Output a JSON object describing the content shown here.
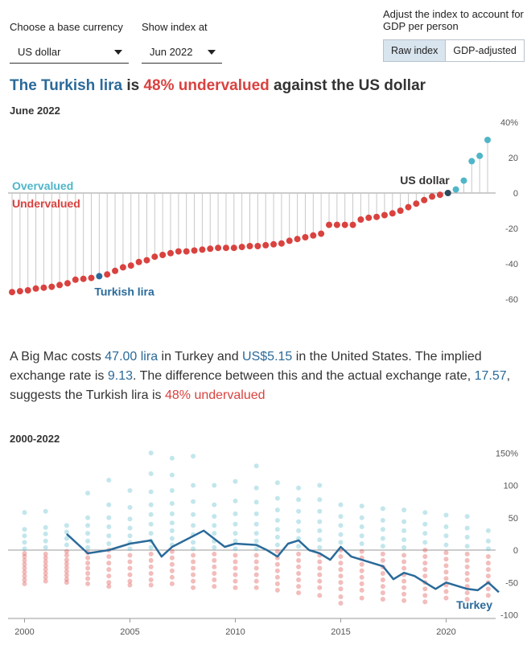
{
  "controls": {
    "base_currency_label": "Choose a base currency",
    "base_currency_value": "US dollar",
    "index_label": "Show index at",
    "index_value": "Jun 2022",
    "adjust_label": "Adjust the index to account for GDP per person",
    "raw_index_label": "Raw index",
    "gdp_adjusted_label": "GDP-adjusted"
  },
  "headline": {
    "currency": "The Turkish lira",
    "is": " is ",
    "verdict": "48% undervalued",
    "against": " against the US dollar"
  },
  "date_label": "June 2022",
  "paragraph": {
    "t1": "A Big Mac costs ",
    "local_price": "47.00 lira",
    "t2": " in Turkey and ",
    "us_price": "US$5.15",
    "t3": " in the United States. The implied exchange rate is ",
    "implied_rate": "9.13",
    "t4": ". The difference between this and the actual exchange rate, ",
    "actual_rate": "17.57",
    "t5": ", suggests the Turkish lira is ",
    "verdict": "48% undervalued"
  },
  "history_label": "2000-2022",
  "colors": {
    "overvalued": "#4fb6c8",
    "undervalued": "#d9423f",
    "highlight": "#2a6a9a",
    "base": "#2d4a5a"
  },
  "chart_data": [
    {
      "type": "scatter",
      "title": "June 2022",
      "annotations": {
        "overvalued": "Overvalued",
        "undervalued": "Undervalued",
        "base": "US dollar",
        "highlight": "Turkish lira"
      },
      "ylim": [
        -65,
        45
      ],
      "yticks": [
        40,
        20,
        0,
        -20,
        -40,
        -60
      ],
      "ytick_labels": [
        "40%",
        "20",
        "0",
        "-20",
        "-40",
        "-60"
      ],
      "values": [
        -56,
        -55.5,
        -55,
        -54,
        -53.5,
        -53,
        -52,
        -51,
        -49,
        -48.5,
        -48,
        -47,
        -46,
        -44,
        -42,
        -41,
        -39,
        -38,
        -36,
        -35,
        -34,
        -33,
        -33,
        -32.5,
        -32,
        -31.5,
        -31,
        -31,
        -31,
        -30.5,
        -30,
        -30,
        -29.5,
        -29,
        -28.5,
        -27,
        -26,
        -25,
        -24,
        -23,
        -18,
        -18,
        -18,
        -18,
        -15,
        -14,
        -13.5,
        -12.5,
        -11.5,
        -10,
        -8,
        -6,
        -4,
        -2,
        -1,
        0,
        2,
        7,
        18,
        21,
        30
      ],
      "base_index": 55,
      "highlight_index": 11
    },
    {
      "type": "scatter",
      "title": "2000-2022",
      "series_label": "Turkey",
      "ylim": [
        -110,
        160
      ],
      "yticks": [
        150,
        100,
        50,
        0,
        -50,
        -100
      ],
      "ytick_labels": [
        "150%",
        "100",
        "50",
        "0",
        "-50",
        "-100"
      ],
      "xlim": [
        1999.6,
        2022.9
      ],
      "xticks": [
        2000,
        2005,
        2010,
        2015,
        2020
      ],
      "xtick_labels": [
        "2000",
        "2005",
        "2010",
        "2015",
        "2020"
      ],
      "turkey": {
        "x": [
          2002.0,
          2003.0,
          2004.0,
          2005.0,
          2006.0,
          2006.5,
          2007.0,
          2008.5,
          2009.5,
          2010.0,
          2011.0,
          2011.5,
          2012.0,
          2012.5,
          2013.0,
          2013.5,
          2014.0,
          2014.5,
          2015.0,
          2015.5,
          2016.0,
          2016.5,
          2017.0,
          2017.5,
          2018.0,
          2018.5,
          2019.0,
          2019.5,
          2020.0,
          2020.5,
          2021.0,
          2021.5,
          2022.0,
          2022.5
        ],
        "y": [
          25,
          -5,
          0,
          10,
          15,
          -10,
          5,
          30,
          5,
          10,
          8,
          0,
          -10,
          10,
          15,
          0,
          -5,
          -15,
          5,
          -10,
          -15,
          -20,
          -25,
          -45,
          -35,
          -40,
          -50,
          -60,
          -50,
          -55,
          -60,
          -62,
          -50,
          -65
        ]
      },
      "country_points": [
        {
          "year": 2000,
          "values": [
            58,
            32,
            22,
            12,
            2,
            -5,
            -10,
            -16,
            -22,
            -28,
            -34,
            -40,
            -46,
            -52
          ]
        },
        {
          "year": 2001,
          "values": [
            60,
            35,
            25,
            14,
            4,
            -6,
            -12,
            -18,
            -24,
            -30,
            -36,
            -42,
            -48
          ]
        },
        {
          "year": 2002,
          "values": [
            38,
            28,
            18,
            8,
            -2,
            -8,
            -15,
            -21,
            -27,
            -33,
            -39,
            -45,
            -50
          ]
        },
        {
          "year": 2003,
          "values": [
            88,
            50,
            38,
            26,
            14,
            4,
            -4,
            -12,
            -20,
            -28,
            -36,
            -44,
            -52
          ]
        },
        {
          "year": 2004,
          "values": [
            108,
            70,
            50,
            36,
            22,
            10,
            0,
            -10,
            -20,
            -30,
            -40,
            -50,
            -56
          ]
        },
        {
          "year": 2005,
          "values": [
            92,
            66,
            48,
            34,
            22,
            12,
            2,
            -8,
            -18,
            -28,
            -38,
            -48,
            -54
          ]
        },
        {
          "year": 2006,
          "values": [
            150,
            118,
            90,
            70,
            55,
            40,
            26,
            14,
            4,
            -6,
            -16,
            -26,
            -36,
            -46,
            -54
          ]
        },
        {
          "year": 2007,
          "values": [
            142,
            116,
            92,
            72,
            56,
            42,
            30,
            18,
            8,
            -2,
            -12,
            -22,
            -32,
            -42,
            -52
          ]
        },
        {
          "year": 2008,
          "values": [
            145,
            100,
            75,
            55,
            38,
            24,
            12,
            2,
            -8,
            -18,
            -28,
            -38,
            -48,
            -58
          ]
        },
        {
          "year": 2009,
          "values": [
            100,
            70,
            52,
            38,
            26,
            14,
            4,
            -6,
            -16,
            -26,
            -36,
            -46,
            -56
          ]
        },
        {
          "year": 2010,
          "values": [
            106,
            76,
            56,
            40,
            26,
            14,
            2,
            -8,
            -18,
            -28,
            -38,
            -48,
            -58
          ]
        },
        {
          "year": 2011,
          "values": [
            130,
            96,
            74,
            56,
            40,
            26,
            14,
            2,
            -8,
            -18,
            -28,
            -38,
            -48,
            -58
          ]
        },
        {
          "year": 2012,
          "values": [
            104,
            80,
            62,
            46,
            32,
            20,
            8,
            -2,
            -12,
            -22,
            -32,
            -42,
            -52,
            -62
          ]
        },
        {
          "year": 2013,
          "values": [
            96,
            78,
            60,
            44,
            30,
            18,
            6,
            -6,
            -16,
            -26,
            -36,
            -46,
            -56,
            -66
          ]
        },
        {
          "year": 2014,
          "values": [
            100,
            78,
            60,
            44,
            30,
            16,
            4,
            -8,
            -18,
            -28,
            -38,
            -48,
            -58,
            -70
          ]
        },
        {
          "year": 2015,
          "values": [
            70,
            52,
            38,
            24,
            12,
            0,
            -10,
            -20,
            -30,
            -40,
            -50,
            -60,
            -72,
            -82
          ]
        },
        {
          "year": 2016,
          "values": [
            68,
            50,
            36,
            22,
            10,
            -2,
            -12,
            -22,
            -32,
            -42,
            -52,
            -62,
            -74
          ]
        },
        {
          "year": 2017,
          "values": [
            64,
            46,
            32,
            18,
            6,
            -6,
            -16,
            -26,
            -36,
            -46,
            -56,
            -66,
            -76
          ]
        },
        {
          "year": 2018,
          "values": [
            62,
            44,
            30,
            16,
            4,
            -8,
            -18,
            -28,
            -38,
            -48,
            -58,
            -68,
            -78
          ]
        },
        {
          "year": 2019,
          "values": [
            58,
            40,
            26,
            12,
            0,
            -10,
            -20,
            -30,
            -40,
            -50,
            -60,
            -70,
            -80
          ]
        },
        {
          "year": 2020,
          "values": [
            54,
            36,
            22,
            8,
            -4,
            -14,
            -24,
            -34,
            -44,
            -54,
            -64,
            -74
          ]
        },
        {
          "year": 2021,
          "values": [
            52,
            34,
            20,
            6,
            -6,
            -16,
            -26,
            -36,
            -46,
            -56,
            -66,
            -76
          ]
        },
        {
          "year": 2022,
          "values": [
            30,
            14,
            2,
            -10,
            -20,
            -30,
            -40,
            -50,
            -60,
            -70
          ]
        }
      ]
    }
  ]
}
